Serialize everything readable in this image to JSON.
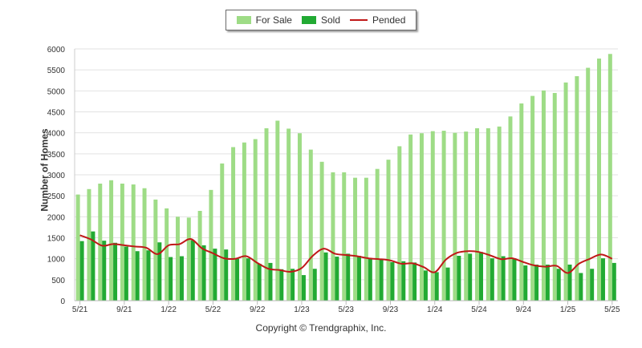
{
  "chart_data": {
    "type": "bar",
    "ylabel": "Number of Homes",
    "ylim": [
      0,
      6000
    ],
    "yticks": [
      0,
      500,
      1000,
      1500,
      2000,
      2500,
      3000,
      3500,
      4000,
      4500,
      5000,
      5500,
      6000
    ],
    "x_tick_labels": [
      {
        "label": "5/21",
        "index": 0
      },
      {
        "label": "9/21",
        "index": 4
      },
      {
        "label": "1/22",
        "index": 8
      },
      {
        "label": "5/22",
        "index": 12
      },
      {
        "label": "9/22",
        "index": 16
      },
      {
        "label": "1/23",
        "index": 20
      },
      {
        "label": "5/23",
        "index": 24
      },
      {
        "label": "9/23",
        "index": 28
      },
      {
        "label": "1/24",
        "index": 32
      },
      {
        "label": "5/24",
        "index": 36
      },
      {
        "label": "9/24",
        "index": 40
      },
      {
        "label": "1/25",
        "index": 44
      },
      {
        "label": "5/25",
        "index": 48
      }
    ],
    "categories": [
      "5/21",
      "6/21",
      "7/21",
      "8/21",
      "9/21",
      "10/21",
      "11/21",
      "12/21",
      "1/22",
      "2/22",
      "3/22",
      "4/22",
      "5/22",
      "6/22",
      "7/22",
      "8/22",
      "9/22",
      "10/22",
      "11/22",
      "12/22",
      "1/23",
      "2/23",
      "3/23",
      "4/23",
      "5/23",
      "6/23",
      "7/23",
      "8/23",
      "9/23",
      "10/23",
      "11/23",
      "12/23",
      "1/24",
      "2/24",
      "3/24",
      "4/24",
      "5/24",
      "6/24",
      "7/24",
      "8/24",
      "9/24",
      "10/24",
      "11/24",
      "12/24",
      "1/25",
      "2/25",
      "3/25",
      "4/25",
      "5/25"
    ],
    "series": [
      {
        "name": "For Sale",
        "type": "bar",
        "color": "#9edc86",
        "values": [
          2530,
          2660,
          2790,
          2870,
          2790,
          2770,
          2680,
          2410,
          2200,
          2000,
          1980,
          2140,
          2640,
          3270,
          3660,
          3770,
          3850,
          4110,
          4290,
          4100,
          3990,
          3600,
          3310,
          3060,
          3060,
          2930,
          2930,
          3140,
          3360,
          3680,
          3960,
          3990,
          4040,
          4050,
          4000,
          4030,
          4110,
          4110,
          4150,
          4390,
          4700,
          4880,
          5010,
          4950,
          5200,
          5350,
          5550,
          5770,
          5880
        ]
      },
      {
        "name": "Sold",
        "type": "bar",
        "color": "#22aa33",
        "values": [
          1420,
          1650,
          1430,
          1380,
          1290,
          1180,
          1200,
          1390,
          1040,
          1060,
          1440,
          1320,
          1240,
          1220,
          1000,
          1010,
          880,
          900,
          750,
          760,
          610,
          760,
          1150,
          1050,
          1120,
          1070,
          1000,
          990,
          920,
          940,
          910,
          720,
          680,
          790,
          1070,
          1120,
          1160,
          1010,
          1060,
          1010,
          840,
          860,
          860,
          760,
          860,
          660,
          760,
          1010,
          900
        ]
      },
      {
        "name": "Pended",
        "type": "line",
        "color": "#c01818",
        "values": [
          1560,
          1460,
          1310,
          1350,
          1320,
          1290,
          1260,
          1110,
          1320,
          1350,
          1470,
          1250,
          1130,
          1010,
          1000,
          1060,
          900,
          760,
          730,
          690,
          780,
          1070,
          1240,
          1120,
          1090,
          1060,
          1010,
          990,
          960,
          880,
          890,
          800,
          680,
          980,
          1140,
          1180,
          1160,
          1080,
          990,
          1010,
          920,
          840,
          810,
          830,
          660,
          880,
          1000,
          1100,
          1000
        ]
      }
    ],
    "legend_position": "top-center",
    "grid": "horizontal",
    "caption": "Copyright © Trendgraphix, Inc."
  }
}
